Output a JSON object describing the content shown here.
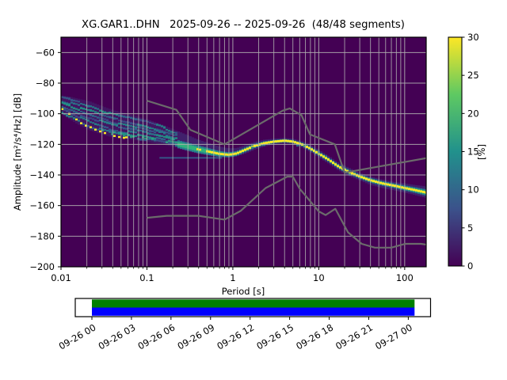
{
  "chart_data": {
    "type": "heatmap",
    "subtype": "ppsd-probabilistic-power-spectral-density",
    "title": "XG.GAR1..DHN   2025-09-26 -- 2025-09-26  (48/48 segments)",
    "station_code": "XG.GAR1..DHN",
    "date_range": "2025-09-26 -- 2025-09-26",
    "segments": "48/48 segments",
    "xlabel": "Period [s]",
    "ylabel": "Amplitude [m²/s⁴/Hz] [dB]",
    "x_scale": "log",
    "xlim": [
      0.01,
      178
    ],
    "ylim": [
      -200,
      -50
    ],
    "grid": true,
    "xticks": [
      0.01,
      0.1,
      1,
      10,
      100
    ],
    "xtick_labels": [
      "0.01",
      "0.1",
      "1",
      "10",
      "100"
    ],
    "yticks": [
      -60,
      -80,
      -100,
      -120,
      -140,
      -160,
      -180,
      -200
    ],
    "colormap": "viridis",
    "background_value_color": "#440154",
    "grid_color": "#b0b0b0",
    "colorbar": {
      "label": "[%]",
      "range": [
        0,
        30
      ],
      "ticks": [
        0,
        5,
        10,
        15,
        20,
        25,
        30
      ],
      "stops_top_to_bottom": [
        "#fde725",
        "#5ec962",
        "#21918c",
        "#3b528b",
        "#440154"
      ]
    },
    "psd_mode_line": {
      "comment": "highest-probability (yellow) PSD ridge, dB vs period[s]",
      "periods": [
        0.01,
        0.013,
        0.017,
        0.022,
        0.03,
        0.04,
        0.06,
        0.08,
        0.1,
        0.15,
        0.2,
        0.3,
        0.4,
        0.55,
        0.7,
        0.9,
        1.1,
        1.4,
        1.8,
        2.3,
        3,
        4,
        5,
        6.5,
        8,
        10,
        13,
        17,
        22,
        30,
        40,
        55,
        75,
        100,
        130,
        178
      ],
      "db": [
        -95,
        -99,
        -103.5,
        -107,
        -110.5,
        -112.5,
        -114,
        -115,
        -116,
        -117.5,
        -119,
        -121.5,
        -123.3,
        -125,
        -126.2,
        -126.8,
        -126,
        -123.5,
        -121,
        -119.3,
        -118.2,
        -117.6,
        -118.2,
        -120.2,
        -122.8,
        -126,
        -130,
        -134.5,
        -137.8,
        -141,
        -143.5,
        -145.5,
        -147,
        -148.5,
        -149.8,
        -151.5
      ],
      "db_high": [
        -88,
        -89,
        -90.5,
        -92,
        -95,
        -97.5,
        -100,
        -102,
        -103.5,
        -107,
        -110,
        -114,
        -117,
        -119.5,
        -121.5,
        -122.5,
        -122.5,
        -120.5,
        -118.5,
        -117,
        -116.3,
        -115.8,
        -116.3,
        -118,
        -120.5,
        -123.5,
        -127.5,
        -132,
        -135,
        -138.5,
        -141,
        -143,
        -144.5,
        -145.5,
        -146.5,
        -147.5
      ],
      "db_low": [
        -100,
        -104,
        -108,
        -111,
        -113.5,
        -115.5,
        -116.5,
        -117.5,
        -118.5,
        -120,
        -121.5,
        -124.5,
        -126,
        -127.5,
        -128.3,
        -128.5,
        -128,
        -126,
        -123.5,
        -121.5,
        -120,
        -119.5,
        -120,
        -122.3,
        -125,
        -128.5,
        -132.5,
        -137,
        -140.5,
        -143.5,
        -146.5,
        -148.5,
        -150,
        -151.5,
        -153,
        -155
      ]
    },
    "noise_models": {
      "color": "#6b6b6b",
      "nhnm": {
        "periods": [
          0.1,
          0.22,
          0.32,
          0.8,
          3.8,
          4.6,
          6.3,
          7.9,
          15.4,
          20,
          354.8
        ],
        "db": [
          -91.5,
          -97.4,
          -110.5,
          -120,
          -98,
          -96.5,
          -101,
          -113.5,
          -120,
          -138.5,
          -126
        ]
      },
      "nlnm": {
        "periods": [
          0.1,
          0.17,
          0.4,
          0.8,
          1.24,
          2.4,
          4.3,
          5,
          6,
          10,
          12,
          15.6,
          21.9,
          31.6,
          45,
          70,
          101,
          154,
          328
        ],
        "db": [
          -168,
          -166.7,
          -166.7,
          -169.2,
          -163.4,
          -148.6,
          -141.1,
          -141.1,
          -149,
          -163.8,
          -166.2,
          -162.1,
          -177.5,
          -185,
          -187.5,
          -187.5,
          -185,
          -185,
          -187.5
        ]
      }
    },
    "timeline": {
      "tick_labels": [
        "09-26 00",
        "09-26 03",
        "09-26 06",
        "09-26 09",
        "09-26 12",
        "09-26 15",
        "09-26 18",
        "09-26 21",
        "09-27 00"
      ],
      "coverage_top_color": "#008000",
      "coverage_bottom_color": "#0000ff",
      "frame_color": "#000000"
    }
  }
}
